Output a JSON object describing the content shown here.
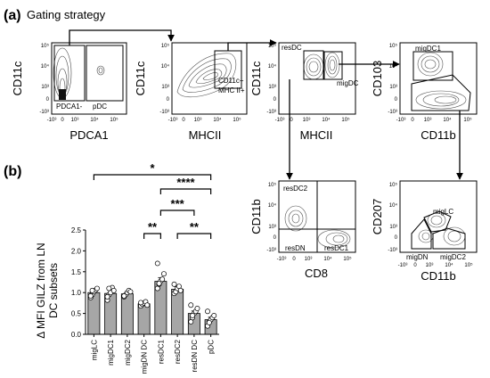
{
  "panel_a": {
    "tag": "(a)",
    "title": "Gating strategy",
    "ticks": {
      "y5": "10⁵",
      "y4": "10⁴",
      "y3": "10³",
      "y0": "0",
      "ym3": "-10³",
      "x5": "10⁵",
      "x4": "10⁴",
      "x3": "10³",
      "x0": "0",
      "xm3": "-10³"
    },
    "plots": [
      {
        "xlabel": "PDCA1",
        "ylabel": "CD11c",
        "gates": [
          "PDCA1-",
          "pDC"
        ]
      },
      {
        "xlabel": "MHCII",
        "ylabel": "CD11c",
        "gates": [
          "CD11c+",
          "MHC II+"
        ]
      },
      {
        "xlabel": "MHCII",
        "ylabel": "CD11c",
        "gates": [
          "resDC",
          "migDC"
        ]
      },
      {
        "xlabel": "CD11b",
        "ylabel": "CD103",
        "gates": [
          "migDC1"
        ]
      },
      {
        "xlabel": "CD8",
        "ylabel": "CD11b",
        "gates": [
          "resDC2",
          "resDN",
          "resDC1"
        ]
      },
      {
        "xlabel": "CD11b",
        "ylabel": "CD207",
        "gates": [
          "migLC",
          "migDN",
          "migDC2"
        ]
      }
    ]
  },
  "panel_b": {
    "tag": "(b)",
    "ylabel_lines": [
      "Δ MFI GILZ from LN",
      "DC subsets"
    ],
    "sig": [
      "*",
      "****",
      "***",
      "**",
      "**"
    ],
    "colors": {
      "bar": "#a6a6a6",
      "edge": "#000000",
      "dot": "#ffffff"
    }
  },
  "chart_data": {
    "type": "bar",
    "categories": [
      "migLC",
      "migDC1",
      "migDC2",
      "migDN DC",
      "resDC1",
      "resDC2",
      "resDN DC",
      "pDC"
    ],
    "values": [
      1.0,
      0.98,
      0.97,
      0.73,
      1.27,
      1.08,
      0.5,
      0.35
    ],
    "errors": [
      0.06,
      0.08,
      0.05,
      0.04,
      0.09,
      0.06,
      0.06,
      0.06
    ],
    "points": [
      [
        0.88,
        0.95,
        1.02,
        1.06,
        1.1,
        0.92,
        1.05
      ],
      [
        0.82,
        0.95,
        1.0,
        1.12,
        1.05,
        0.9,
        1.1
      ],
      [
        0.9,
        0.95,
        1.0,
        1.05,
        1.02,
        0.92
      ],
      [
        0.68,
        0.72,
        0.75,
        0.78,
        0.7,
        0.76
      ],
      [
        1.1,
        1.2,
        1.28,
        1.32,
        1.45,
        1.7,
        1.22
      ],
      [
        0.98,
        1.02,
        1.1,
        1.15,
        1.05,
        1.2
      ],
      [
        0.3,
        0.4,
        0.5,
        0.55,
        0.62,
        0.7,
        0.45
      ],
      [
        0.2,
        0.3,
        0.35,
        0.4,
        0.45,
        0.55,
        0.28
      ]
    ],
    "yticks": [
      "0.0",
      "0.5",
      "1.0",
      "1.5",
      "2.0",
      "2.5"
    ],
    "ylim": [
      0,
      2.5
    ],
    "significance": [
      {
        "from": 0,
        "to": 7,
        "label": "*"
      },
      {
        "from": 4,
        "to": 7,
        "label": "****"
      },
      {
        "from": 4,
        "to": 6,
        "label": "***"
      },
      {
        "from": 3,
        "to": 4,
        "label": "**"
      },
      {
        "from": 5,
        "to": 7,
        "label": "**"
      }
    ]
  }
}
